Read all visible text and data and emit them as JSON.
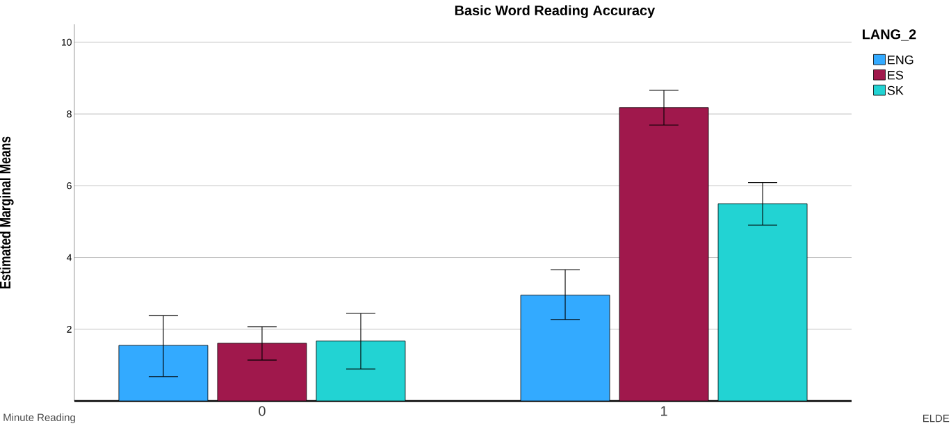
{
  "chart_data": {
    "type": "bar",
    "title": "Basic Word Reading Accuracy",
    "ylabel": "Estimated Marginal Means",
    "legend_title": "LANG_2",
    "categories": [
      "0",
      "1"
    ],
    "series": [
      {
        "name": "ENG",
        "color": "#33aaff",
        "values": [
          1.55,
          2.95
        ],
        "errors": [
          [
            0.68,
            2.38
          ],
          [
            2.27,
            3.66
          ]
        ]
      },
      {
        "name": "ES",
        "color": "#a0184c",
        "values": [
          1.61,
          8.18
        ],
        "errors": [
          [
            1.14,
            2.07
          ],
          [
            7.69,
            8.66
          ]
        ]
      },
      {
        "name": "SK",
        "color": "#22d3d3",
        "values": [
          1.67,
          5.5
        ],
        "errors": [
          [
            0.89,
            2.44
          ],
          [
            4.9,
            6.09
          ]
        ]
      }
    ],
    "ylim": [
      0,
      10.5
    ],
    "yticks": [
      {
        "value": 0,
        "label": null
      },
      2,
      4,
      6,
      8,
      10
    ],
    "grid": "y",
    "legend": "top right",
    "annotations": [
      "Minute Reading",
      "ELDE"
    ]
  }
}
